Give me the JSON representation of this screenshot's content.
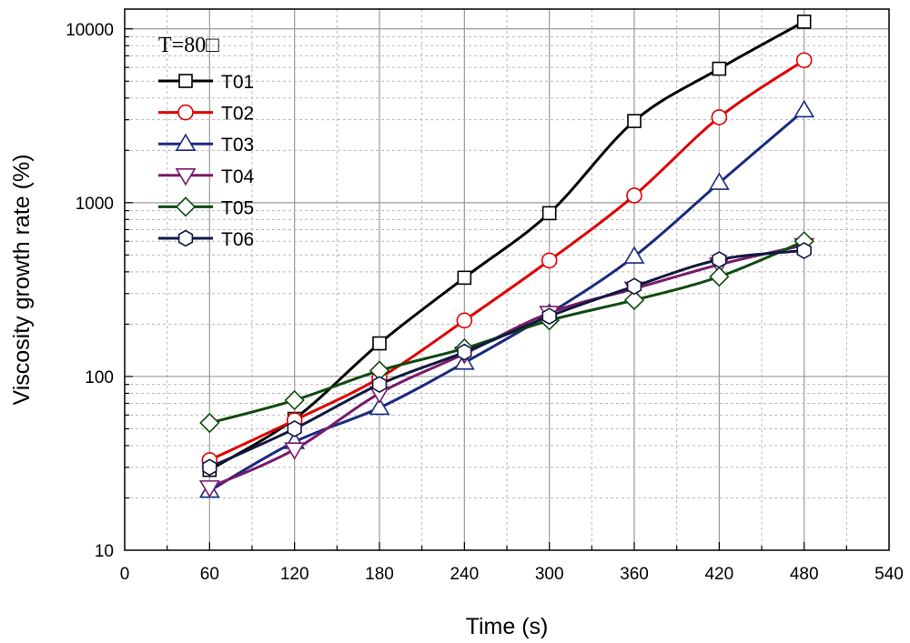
{
  "chart_data": {
    "type": "line",
    "xlabel": "Time (s)",
    "ylabel": "Viscosity growth rate (%)",
    "xlim": [
      0,
      540
    ],
    "ylim": [
      10,
      13000
    ],
    "yscale": "log",
    "xticks": [
      "0",
      "60",
      "120",
      "180",
      "240",
      "300",
      "360",
      "420",
      "480",
      "540"
    ],
    "yticks": [
      "10",
      "100",
      "1000",
      "10000"
    ],
    "grid": true,
    "legend_position": "top-left",
    "legend_title": "T=80□",
    "x": [
      60,
      120,
      180,
      240,
      300,
      360,
      420,
      480
    ],
    "series": [
      {
        "name": "T01",
        "color": "#000000",
        "marker": "square",
        "values": [
          29,
          57,
          155,
          370,
          870,
          2950,
          5900,
          11000
        ]
      },
      {
        "name": "T02",
        "color": "#e00000",
        "marker": "circle",
        "values": [
          33,
          56,
          98,
          210,
          465,
          1100,
          3100,
          6600
        ]
      },
      {
        "name": "T03",
        "color": "#1a2a80",
        "marker": "triangle-up",
        "values": [
          22,
          42,
          66,
          120,
          230,
          490,
          1300,
          3400
        ]
      },
      {
        "name": "T04",
        "color": "#7a1a6a",
        "marker": "triangle-down",
        "values": [
          23,
          38,
          80,
          135,
          232,
          320,
          440,
          570
        ]
      },
      {
        "name": "T05",
        "color": "#0f4a0f",
        "marker": "diamond",
        "values": [
          54,
          73,
          108,
          145,
          210,
          275,
          375,
          600
        ]
      },
      {
        "name": "T06",
        "color": "#101840",
        "marker": "hexagon",
        "values": [
          30,
          50,
          90,
          138,
          222,
          330,
          470,
          530
        ]
      }
    ]
  }
}
